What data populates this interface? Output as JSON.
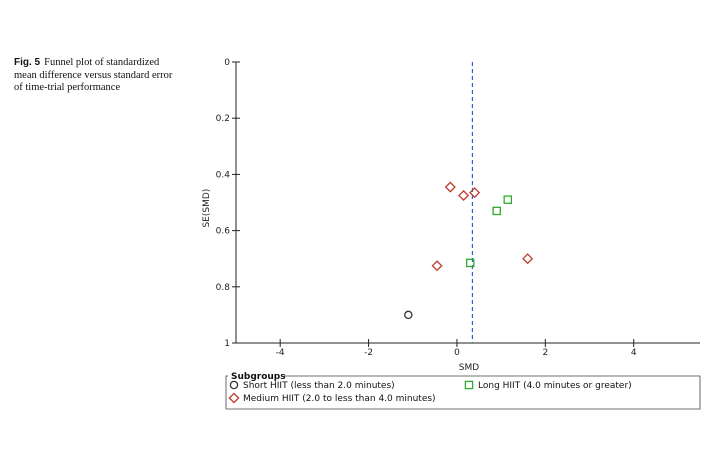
{
  "caption": {
    "fig_label": "Fig. 5",
    "text": "Funnel plot of standardized mean difference versus standard error of time-trial performance"
  },
  "chart_data": {
    "type": "scatter",
    "xlabel": "SMD",
    "ylabel": "SE(SMD)",
    "xlim": [
      -5,
      5.5
    ],
    "ylim": [
      0,
      1
    ],
    "y_inverted": true,
    "x_ticks": [
      -4,
      -2,
      0,
      2,
      4
    ],
    "y_ticks": [
      0,
      0.2,
      0.4,
      0.6,
      0.8,
      1
    ],
    "y_tick_labels": [
      "0",
      "0.2",
      "0.4",
      "0.6",
      "0.8",
      "1"
    ],
    "reference_line_x": 0.35,
    "legend_title": "Subgroups",
    "series": [
      {
        "name": "Short HIIT (less than 2.0 minutes)",
        "marker": "circle",
        "color": "#333333",
        "points": [
          [
            -1.1,
            0.9
          ]
        ]
      },
      {
        "name": "Medium HIIT (2.0 to less than 4.0 minutes)",
        "marker": "diamond",
        "color": "#c0392b",
        "points": [
          [
            -0.15,
            0.445
          ],
          [
            0.15,
            0.475
          ],
          [
            0.4,
            0.465
          ],
          [
            -0.45,
            0.725
          ],
          [
            1.6,
            0.7
          ]
        ]
      },
      {
        "name": "Long HIIT (4.0 minutes or greater)",
        "marker": "square",
        "color": "#2eaa2e",
        "points": [
          [
            1.15,
            0.49
          ],
          [
            0.9,
            0.53
          ],
          [
            0.3,
            0.715
          ]
        ]
      }
    ]
  }
}
